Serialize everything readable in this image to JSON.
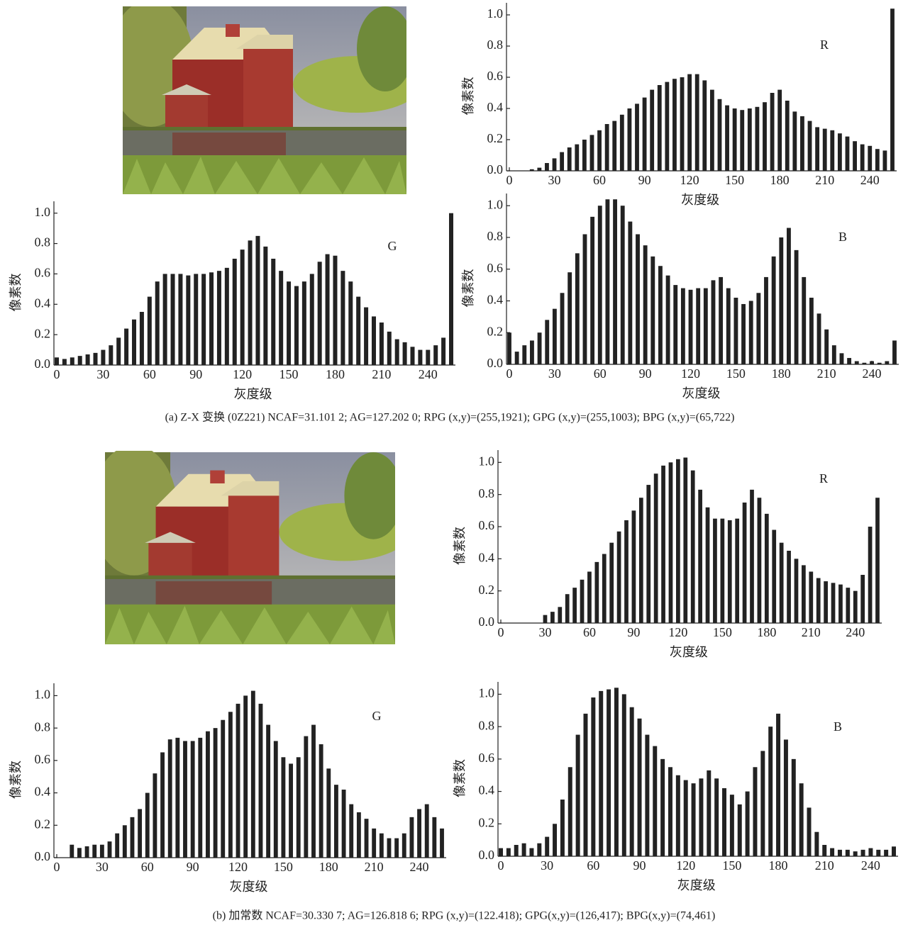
{
  "chart_data": [
    {
      "type": "bar",
      "annotation": "R",
      "ylabel": "像素数",
      "xlabel": "灰度级",
      "color": "#222222",
      "x": [
        0,
        5,
        10,
        15,
        20,
        25,
        30,
        35,
        40,
        45,
        50,
        55,
        60,
        65,
        70,
        75,
        80,
        85,
        90,
        95,
        100,
        105,
        110,
        115,
        120,
        125,
        130,
        135,
        140,
        145,
        150,
        155,
        160,
        165,
        170,
        175,
        180,
        185,
        190,
        195,
        200,
        205,
        210,
        215,
        220,
        225,
        230,
        235,
        240,
        245,
        250,
        255
      ],
      "values": [
        0,
        0,
        0,
        0.01,
        0.02,
        0.05,
        0.08,
        0.12,
        0.15,
        0.17,
        0.2,
        0.23,
        0.26,
        0.3,
        0.32,
        0.36,
        0.4,
        0.43,
        0.47,
        0.52,
        0.55,
        0.57,
        0.59,
        0.6,
        0.62,
        0.62,
        0.58,
        0.52,
        0.46,
        0.42,
        0.4,
        0.39,
        0.4,
        0.41,
        0.44,
        0.5,
        0.52,
        0.45,
        0.38,
        0.35,
        0.32,
        0.28,
        0.27,
        0.26,
        0.24,
        0.22,
        0.19,
        0.17,
        0.16,
        0.14,
        0.13,
        1.04
      ],
      "xlim": [
        0,
        255
      ],
      "ylim": [
        0,
        1.05
      ],
      "xticks": [
        0,
        30,
        60,
        90,
        120,
        150,
        180,
        210,
        240
      ],
      "yticks": [
        {
          "value": 0,
          "label": "0.0"
        },
        0.2,
        0.4,
        0.6,
        0.8,
        {
          "value": 1,
          "label": "1.0"
        }
      ]
    },
    {
      "type": "bar",
      "annotation": "G",
      "ylabel": "像素数",
      "xlabel": "灰度级",
      "color": "#222222",
      "x": [
        0,
        5,
        10,
        15,
        20,
        25,
        30,
        35,
        40,
        45,
        50,
        55,
        60,
        65,
        70,
        75,
        80,
        85,
        90,
        95,
        100,
        105,
        110,
        115,
        120,
        125,
        130,
        135,
        140,
        145,
        150,
        155,
        160,
        165,
        170,
        175,
        180,
        185,
        190,
        195,
        200,
        205,
        210,
        215,
        220,
        225,
        230,
        235,
        240,
        245,
        250,
        255
      ],
      "values": [
        0.05,
        0.04,
        0.05,
        0.06,
        0.07,
        0.08,
        0.1,
        0.13,
        0.18,
        0.24,
        0.3,
        0.35,
        0.45,
        0.55,
        0.6,
        0.6,
        0.6,
        0.59,
        0.6,
        0.6,
        0.61,
        0.62,
        0.64,
        0.7,
        0.76,
        0.82,
        0.85,
        0.78,
        0.7,
        0.62,
        0.55,
        0.52,
        0.55,
        0.6,
        0.68,
        0.73,
        0.72,
        0.62,
        0.55,
        0.45,
        0.38,
        0.32,
        0.28,
        0.22,
        0.17,
        0.15,
        0.12,
        0.1,
        0.1,
        0.13,
        0.18,
        1.0
      ],
      "xlim": [
        0,
        255
      ],
      "ylim": [
        0,
        1.05
      ],
      "xticks": [
        0,
        30,
        60,
        90,
        120,
        150,
        180,
        210,
        240
      ],
      "yticks": [
        {
          "value": 0,
          "label": "0.0"
        },
        0.2,
        0.4,
        0.6,
        0.8,
        {
          "value": 1,
          "label": "1.0"
        }
      ]
    },
    {
      "type": "bar",
      "annotation": "B",
      "ylabel": "像素数",
      "xlabel": "灰度级",
      "color": "#222222",
      "x": [
        0,
        5,
        10,
        15,
        20,
        25,
        30,
        35,
        40,
        45,
        50,
        55,
        60,
        65,
        70,
        75,
        80,
        85,
        90,
        95,
        100,
        105,
        110,
        115,
        120,
        125,
        130,
        135,
        140,
        145,
        150,
        155,
        160,
        165,
        170,
        175,
        180,
        185,
        190,
        195,
        200,
        205,
        210,
        215,
        220,
        225,
        230,
        235,
        240,
        245,
        250,
        255
      ],
      "values": [
        0.2,
        0.08,
        0.12,
        0.15,
        0.2,
        0.28,
        0.35,
        0.45,
        0.58,
        0.7,
        0.82,
        0.93,
        1.0,
        1.04,
        1.04,
        1.0,
        0.9,
        0.82,
        0.75,
        0.68,
        0.62,
        0.56,
        0.5,
        0.48,
        0.47,
        0.48,
        0.48,
        0.53,
        0.55,
        0.48,
        0.42,
        0.38,
        0.4,
        0.45,
        0.55,
        0.68,
        0.8,
        0.86,
        0.72,
        0.55,
        0.42,
        0.32,
        0.22,
        0.12,
        0.07,
        0.04,
        0.02,
        0.01,
        0.02,
        0.01,
        0.02,
        0.15
      ],
      "xlim": [
        0,
        255
      ],
      "ylim": [
        0,
        1.05
      ],
      "xticks": [
        0,
        30,
        60,
        90,
        120,
        150,
        180,
        210,
        240
      ],
      "yticks": [
        {
          "value": 0,
          "label": "0.0"
        },
        0.2,
        0.4,
        0.6,
        0.8,
        {
          "value": 1,
          "label": "1.0"
        }
      ]
    },
    {
      "type": "bar",
      "annotation": "R",
      "ylabel": "像素数",
      "xlabel": "灰度级",
      "color": "#222222",
      "x": [
        0,
        5,
        10,
        15,
        20,
        25,
        30,
        35,
        40,
        45,
        50,
        55,
        60,
        65,
        70,
        75,
        80,
        85,
        90,
        95,
        100,
        105,
        110,
        115,
        120,
        125,
        130,
        135,
        140,
        145,
        150,
        155,
        160,
        165,
        170,
        175,
        180,
        185,
        190,
        195,
        200,
        205,
        210,
        215,
        220,
        225,
        230,
        235,
        240,
        245,
        250,
        255
      ],
      "values": [
        0,
        0,
        0,
        0,
        0,
        0,
        0.05,
        0.07,
        0.1,
        0.18,
        0.22,
        0.27,
        0.32,
        0.38,
        0.43,
        0.5,
        0.57,
        0.64,
        0.7,
        0.78,
        0.86,
        0.93,
        0.98,
        1.0,
        1.02,
        1.03,
        0.95,
        0.83,
        0.72,
        0.65,
        0.65,
        0.64,
        0.65,
        0.75,
        0.83,
        0.78,
        0.68,
        0.58,
        0.5,
        0.45,
        0.4,
        0.36,
        0.32,
        0.28,
        0.26,
        0.25,
        0.24,
        0.22,
        0.2,
        0.3,
        0.6,
        0.78
      ],
      "xlim": [
        0,
        255
      ],
      "ylim": [
        0,
        1.05
      ],
      "xticks": [
        0,
        30,
        60,
        90,
        120,
        150,
        180,
        210,
        240
      ],
      "yticks": [
        {
          "value": 0,
          "label": "0.0"
        },
        0.2,
        0.4,
        0.6,
        0.8,
        {
          "value": 1,
          "label": "1.0"
        }
      ]
    },
    {
      "type": "bar",
      "annotation": "G",
      "ylabel": "像素数",
      "xlabel": "灰度级",
      "color": "#222222",
      "x": [
        0,
        5,
        10,
        15,
        20,
        25,
        30,
        35,
        40,
        45,
        50,
        55,
        60,
        65,
        70,
        75,
        80,
        85,
        90,
        95,
        100,
        105,
        110,
        115,
        120,
        125,
        130,
        135,
        140,
        145,
        150,
        155,
        160,
        165,
        170,
        175,
        180,
        185,
        190,
        195,
        200,
        205,
        210,
        215,
        220,
        225,
        230,
        235,
        240,
        245,
        250,
        255
      ],
      "values": [
        0,
        0,
        0.08,
        0.06,
        0.07,
        0.08,
        0.08,
        0.1,
        0.15,
        0.2,
        0.25,
        0.3,
        0.4,
        0.52,
        0.65,
        0.73,
        0.74,
        0.72,
        0.72,
        0.74,
        0.78,
        0.8,
        0.85,
        0.9,
        0.95,
        1.0,
        1.03,
        0.95,
        0.82,
        0.72,
        0.62,
        0.58,
        0.62,
        0.75,
        0.82,
        0.7,
        0.55,
        0.45,
        0.42,
        0.33,
        0.28,
        0.24,
        0.18,
        0.15,
        0.12,
        0.12,
        0.15,
        0.25,
        0.3,
        0.33,
        0.25,
        0.18
      ],
      "xlim": [
        0,
        255
      ],
      "ylim": [
        0,
        1.05
      ],
      "xticks": [
        0,
        30,
        60,
        90,
        120,
        150,
        180,
        210,
        240
      ],
      "yticks": [
        {
          "value": 0,
          "label": "0.0"
        },
        0.2,
        0.4,
        0.6,
        0.8,
        {
          "value": 1,
          "label": "1.0"
        }
      ]
    },
    {
      "type": "bar",
      "annotation": "B",
      "ylabel": "像素数",
      "xlabel": "灰度级",
      "color": "#222222",
      "x": [
        0,
        5,
        10,
        15,
        20,
        25,
        30,
        35,
        40,
        45,
        50,
        55,
        60,
        65,
        70,
        75,
        80,
        85,
        90,
        95,
        100,
        105,
        110,
        115,
        120,
        125,
        130,
        135,
        140,
        145,
        150,
        155,
        160,
        165,
        170,
        175,
        180,
        185,
        190,
        195,
        200,
        205,
        210,
        215,
        220,
        225,
        230,
        235,
        240,
        245,
        250,
        255
      ],
      "values": [
        0.05,
        0.05,
        0.07,
        0.08,
        0.05,
        0.08,
        0.12,
        0.2,
        0.35,
        0.55,
        0.75,
        0.88,
        0.98,
        1.02,
        1.03,
        1.04,
        1.0,
        0.92,
        0.85,
        0.75,
        0.68,
        0.6,
        0.55,
        0.5,
        0.47,
        0.45,
        0.48,
        0.53,
        0.48,
        0.42,
        0.38,
        0.32,
        0.4,
        0.55,
        0.65,
        0.8,
        0.88,
        0.72,
        0.6,
        0.45,
        0.3,
        0.15,
        0.07,
        0.05,
        0.04,
        0.04,
        0.03,
        0.04,
        0.05,
        0.04,
        0.04,
        0.06
      ],
      "xlim": [
        0,
        255
      ],
      "ylim": [
        0,
        1.05
      ],
      "xticks": [
        0,
        30,
        60,
        90,
        120,
        150,
        180,
        210,
        240
      ],
      "yticks": [
        {
          "value": 0,
          "label": "0.0"
        },
        0.2,
        0.4,
        0.6,
        0.8,
        {
          "value": 1,
          "label": "1.0"
        }
      ]
    }
  ],
  "captions": [
    "(a) Z-X 变换 (0Z221)  NCAF=31.101 2; AG=127.202 0; RPG (x,y)=(255,1921); GPG (x,y)=(255,1003); BPG (x,y)=(65,722)",
    "(b) 加常数 NCAF=30.330 7; AG=126.818 6; RPG (x,y)=(122.418); GPG(x,y)=(126,417); BPG(x,y)=(74,461)"
  ]
}
